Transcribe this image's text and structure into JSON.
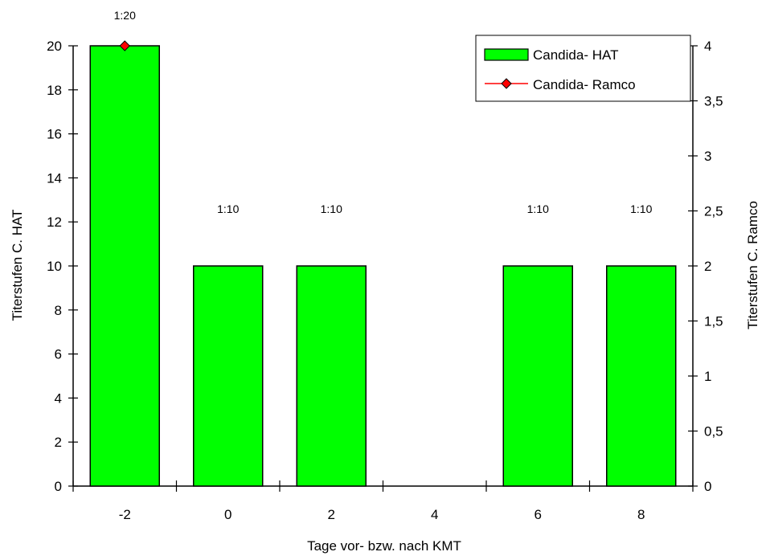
{
  "chart_data": {
    "type": "bar",
    "x_axis": {
      "label": "Tage vor- bzw. nach KMT",
      "categories": [
        "-2",
        "0",
        "2",
        "4",
        "6",
        "8"
      ]
    },
    "y_axis_left": {
      "label": "Titerstufen C. HAT",
      "range": [
        0,
        20
      ],
      "ticks": [
        0,
        2,
        4,
        6,
        8,
        10,
        12,
        14,
        16,
        18,
        20
      ],
      "tick_labels": [
        "0",
        "2",
        "4",
        "6",
        "8",
        "10",
        "12",
        "14",
        "16",
        "18",
        "20"
      ]
    },
    "y_axis_right": {
      "label": "Titerstufen C. Ramco",
      "range": [
        0,
        4
      ],
      "ticks": [
        0,
        0.5,
        1,
        1.5,
        2,
        2.5,
        3,
        3.5,
        4
      ],
      "tick_labels": [
        "0",
        "0,5",
        "1",
        "1,5",
        "2",
        "2,5",
        "3",
        "3,5",
        "4"
      ]
    },
    "series": [
      {
        "name": "Candida- HAT",
        "type": "bar",
        "axis": "left",
        "color": "#00ff00",
        "values": [
          20,
          10,
          10,
          0,
          10,
          10
        ],
        "data_labels": [
          "1:20",
          "1:10",
          "1:10",
          "",
          "1:10",
          "1:10"
        ]
      },
      {
        "name": "Candida- Ramco",
        "type": "line",
        "axis": "right",
        "color": "#ff0000",
        "marker": "diamond",
        "values": [
          4,
          null,
          null,
          null,
          null,
          null
        ]
      }
    ],
    "legend": {
      "position": "top-right",
      "entries": [
        "Candida- HAT",
        "Candida- Ramco"
      ]
    },
    "grid": false
  }
}
